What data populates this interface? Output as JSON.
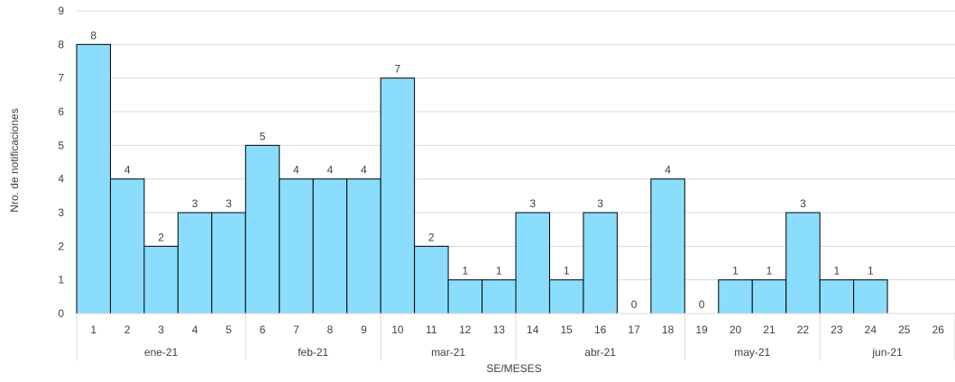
{
  "chart_data": {
    "type": "bar",
    "categories": [
      "1",
      "2",
      "3",
      "4",
      "5",
      "6",
      "7",
      "8",
      "9",
      "10",
      "11",
      "12",
      "13",
      "14",
      "15",
      "16",
      "17",
      "18",
      "19",
      "20",
      "21",
      "22",
      "23",
      "24",
      "25",
      "26"
    ],
    "values": [
      8,
      4,
      2,
      3,
      3,
      5,
      4,
      4,
      4,
      7,
      2,
      1,
      1,
      3,
      1,
      3,
      0,
      4,
      0,
      1,
      1,
      3,
      1,
      1,
      null,
      null
    ],
    "data_labels": [
      "8",
      "4",
      "2",
      "3",
      "3",
      "5",
      "4",
      "4",
      "4",
      "7",
      "2",
      "1",
      "1",
      "3",
      "1",
      "3",
      "0",
      "4",
      "0",
      "1",
      "1",
      "3",
      "1",
      "1",
      "",
      ""
    ],
    "month_groups": [
      {
        "label": "ene-21",
        "start": 1,
        "end": 5
      },
      {
        "label": "feb-21",
        "start": 6,
        "end": 9
      },
      {
        "label": "mar-21",
        "start": 10,
        "end": 13
      },
      {
        "label": "abr-21",
        "start": 14,
        "end": 18
      },
      {
        "label": "may-21",
        "start": 19,
        "end": 22
      },
      {
        "label": "jun-21",
        "start": 23,
        "end": 26
      }
    ],
    "title": "",
    "xlabel": "SE/MESES",
    "ylabel": "Nro. de notificaciones",
    "ylim": [
      0,
      9
    ],
    "yticks": [
      0,
      1,
      2,
      3,
      4,
      5,
      6,
      7,
      8,
      9
    ],
    "grid": true,
    "legend": "none",
    "colors": {
      "bar_fill": "#8ADDFC",
      "bar_stroke": "#000000",
      "grid": "#D9D9D9",
      "text": "#404040"
    }
  }
}
